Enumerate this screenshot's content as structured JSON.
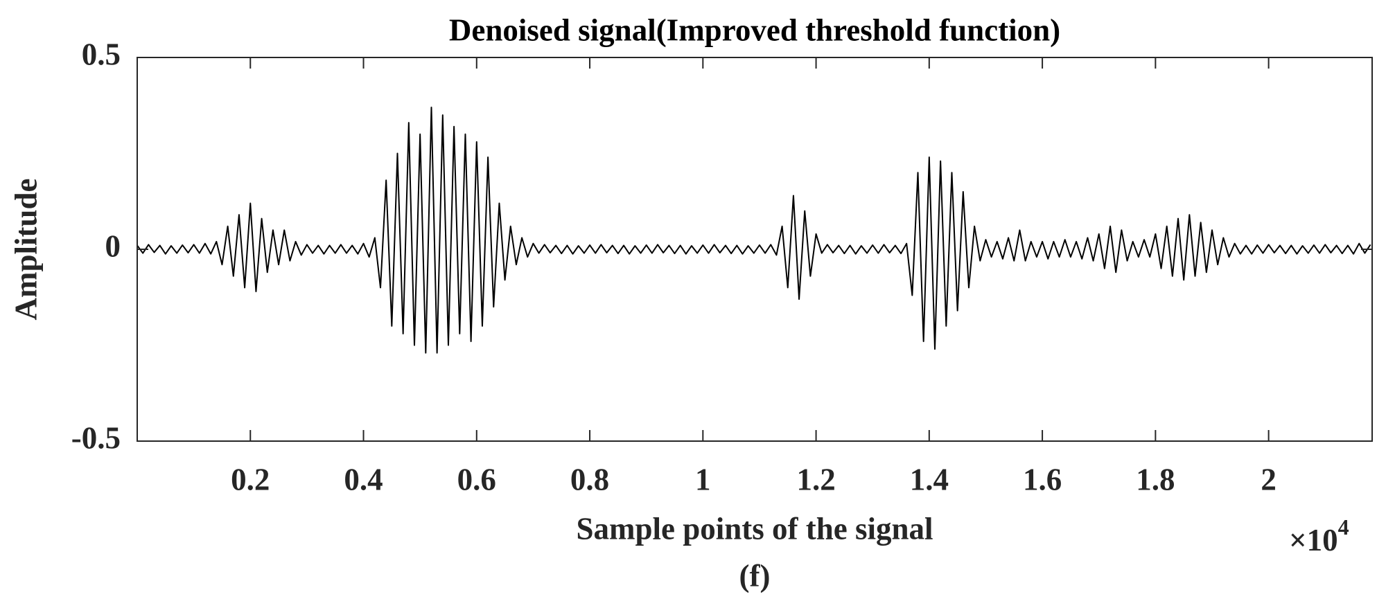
{
  "chart_data": {
    "type": "line",
    "title": "Denoised signal(Improved threshold function)",
    "x_label": "Sample points of the signal",
    "y_label": "Amplitude",
    "caption": "(f)",
    "x_multiplier": {
      "base": "×10",
      "exponent": "4"
    },
    "color": "#000000",
    "xlim": [
      0,
      21830
    ],
    "ylim": [
      -0.5,
      0.5
    ],
    "xticks": [
      {
        "value": 2000,
        "label": "0.2"
      },
      {
        "value": 4000,
        "label": "0.4"
      },
      {
        "value": 6000,
        "label": "0.6"
      },
      {
        "value": 8000,
        "label": "0.8"
      },
      {
        "value": 10000,
        "label": "1"
      },
      {
        "value": 12000,
        "label": "1.2"
      },
      {
        "value": 14000,
        "label": "1.4"
      },
      {
        "value": 16000,
        "label": "1.6"
      },
      {
        "value": 18000,
        "label": "1.8"
      },
      {
        "value": 20000,
        "label": "2"
      }
    ],
    "yticks": [
      -0.5,
      0,
      0.5
    ],
    "x": [
      0,
      100,
      200,
      300,
      400,
      500,
      600,
      700,
      800,
      900,
      1000,
      1100,
      1200,
      1300,
      1400,
      1500,
      1600,
      1700,
      1800,
      1900,
      2000,
      2100,
      2200,
      2300,
      2400,
      2500,
      2600,
      2700,
      2800,
      2900,
      3000,
      3100,
      3200,
      3300,
      3400,
      3500,
      3600,
      3700,
      3800,
      3900,
      4000,
      4100,
      4200,
      4300,
      4400,
      4500,
      4600,
      4700,
      4800,
      4900,
      5000,
      5100,
      5200,
      5300,
      5400,
      5500,
      5600,
      5700,
      5800,
      5900,
      6000,
      6100,
      6200,
      6300,
      6400,
      6500,
      6600,
      6700,
      6800,
      6900,
      7000,
      7100,
      7200,
      7300,
      7400,
      7500,
      7600,
      7700,
      7800,
      7900,
      8000,
      8100,
      8200,
      8300,
      8400,
      8500,
      8600,
      8700,
      8800,
      8900,
      9000,
      9100,
      9200,
      9300,
      9400,
      9500,
      9600,
      9700,
      9800,
      9900,
      10000,
      10100,
      10200,
      10300,
      10400,
      10500,
      10600,
      10700,
      10800,
      10900,
      11000,
      11100,
      11200,
      11300,
      11400,
      11500,
      11600,
      11700,
      11800,
      11900,
      12000,
      12100,
      12200,
      12300,
      12400,
      12500,
      12600,
      12700,
      12800,
      12900,
      13000,
      13100,
      13200,
      13300,
      13400,
      13500,
      13600,
      13700,
      13800,
      13900,
      14000,
      14100,
      14200,
      14300,
      14400,
      14500,
      14600,
      14700,
      14800,
      14900,
      15000,
      15100,
      15200,
      15300,
      15400,
      15500,
      15600,
      15700,
      15800,
      15900,
      16000,
      16100,
      16200,
      16300,
      16400,
      16500,
      16600,
      16700,
      16800,
      16900,
      17000,
      17100,
      17200,
      17300,
      17400,
      17500,
      17600,
      17700,
      17800,
      17900,
      18000,
      18100,
      18200,
      18300,
      18400,
      18500,
      18600,
      18700,
      18800,
      18900,
      19000,
      19100,
      19200,
      19300,
      19400,
      19500,
      19600,
      19700,
      19800,
      19900,
      20000,
      20100,
      20200,
      20300,
      20400,
      20500,
      20600,
      20700,
      20800,
      20900,
      21000,
      21100,
      21200,
      21300,
      21400,
      21500,
      21600,
      21700,
      21800
    ],
    "values": [
      0.01,
      -0.01,
      0.012,
      -0.008,
      0.01,
      -0.012,
      0.009,
      -0.01,
      0.011,
      -0.009,
      0.012,
      -0.01,
      0.015,
      -0.012,
      0.02,
      -0.04,
      0.06,
      -0.07,
      0.09,
      -0.1,
      0.12,
      -0.11,
      0.08,
      -0.06,
      0.05,
      -0.04,
      0.05,
      -0.03,
      0.02,
      -0.015,
      0.012,
      -0.01,
      0.01,
      -0.012,
      0.01,
      -0.01,
      0.012,
      -0.01,
      0.01,
      -0.012,
      0.015,
      -0.02,
      0.03,
      -0.1,
      0.18,
      -0.2,
      0.25,
      -0.22,
      0.33,
      -0.25,
      0.3,
      -0.27,
      0.37,
      -0.27,
      0.35,
      -0.25,
      0.32,
      -0.22,
      0.3,
      -0.24,
      0.28,
      -0.2,
      0.24,
      -0.15,
      0.12,
      -0.08,
      0.06,
      -0.04,
      0.03,
      -0.02,
      0.015,
      -0.01,
      0.012,
      -0.009,
      0.01,
      -0.011,
      0.01,
      -0.012,
      0.009,
      -0.01,
      0.011,
      -0.01,
      0.012,
      -0.009,
      0.01,
      -0.011,
      0.01,
      -0.012,
      0.009,
      -0.01,
      0.011,
      -0.01,
      0.012,
      -0.009,
      0.01,
      -0.011,
      0.01,
      -0.012,
      0.009,
      -0.01,
      0.011,
      -0.01,
      0.012,
      -0.009,
      0.01,
      -0.011,
      0.01,
      -0.012,
      0.009,
      -0.01,
      0.011,
      -0.01,
      0.012,
      -0.015,
      0.06,
      -0.1,
      0.14,
      -0.13,
      0.1,
      -0.07,
      0.04,
      -0.01,
      0.012,
      -0.009,
      0.01,
      -0.011,
      0.01,
      -0.012,
      0.009,
      -0.01,
      0.011,
      -0.01,
      0.012,
      -0.009,
      0.01,
      -0.011,
      0.015,
      -0.12,
      0.2,
      -0.24,
      0.24,
      -0.26,
      0.23,
      -0.2,
      0.2,
      -0.16,
      0.15,
      -0.1,
      0.06,
      -0.03,
      0.025,
      -0.02,
      0.02,
      -0.025,
      0.03,
      -0.03,
      0.05,
      -0.03,
      0.02,
      -0.02,
      0.02,
      -0.025,
      0.02,
      -0.02,
      0.025,
      -0.02,
      0.02,
      -0.025,
      0.03,
      -0.03,
      0.04,
      -0.05,
      0.06,
      -0.06,
      0.05,
      -0.03,
      0.02,
      -0.02,
      0.025,
      -0.02,
      0.04,
      -0.05,
      0.06,
      -0.07,
      0.08,
      -0.08,
      0.09,
      -0.07,
      0.07,
      -0.06,
      0.05,
      -0.04,
      0.03,
      -0.02,
      0.015,
      -0.012,
      0.01,
      -0.012,
      0.011,
      -0.01,
      0.012,
      -0.009,
      0.01,
      -0.011,
      0.01,
      -0.012,
      0.009,
      -0.01,
      0.011,
      -0.01,
      0.012,
      -0.009,
      0.01,
      -0.011,
      0.01,
      -0.012,
      0.015,
      -0.01,
      0.012
    ]
  }
}
